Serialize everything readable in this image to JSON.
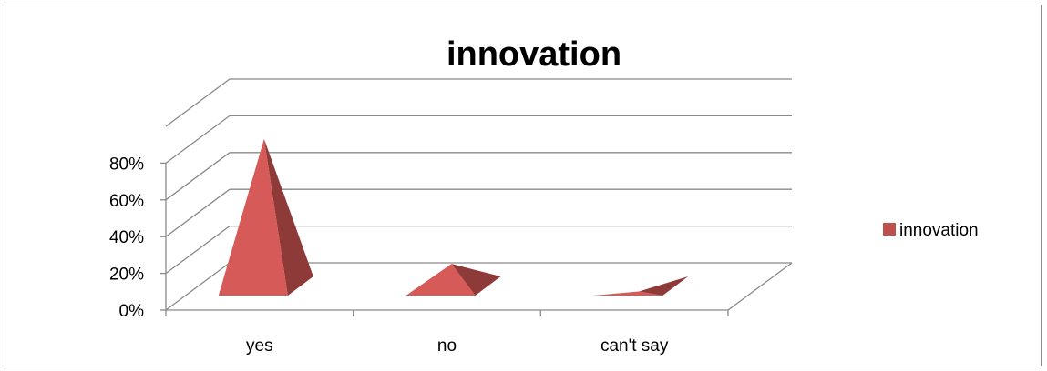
{
  "chart_data": {
    "type": "bar",
    "shape": "pyramid-3d",
    "title": "innovation",
    "xlabel": "",
    "ylabel": "",
    "categories": [
      "yes",
      "no",
      "can't say"
    ],
    "series": [
      {
        "name": "innovation",
        "values": [
          0.84,
          0.16,
          0.01
        ]
      }
    ],
    "ylim": [
      0,
      0.8
    ],
    "y_ticks": [
      "0%",
      "20%",
      "40%",
      "60%",
      "80%"
    ],
    "grid": true,
    "legend_position": "right",
    "colors": {
      "front": "#d55a58",
      "side": "#8e3a39",
      "legend": "#c0504d",
      "grid": "#898989",
      "axis": "#898989"
    }
  }
}
